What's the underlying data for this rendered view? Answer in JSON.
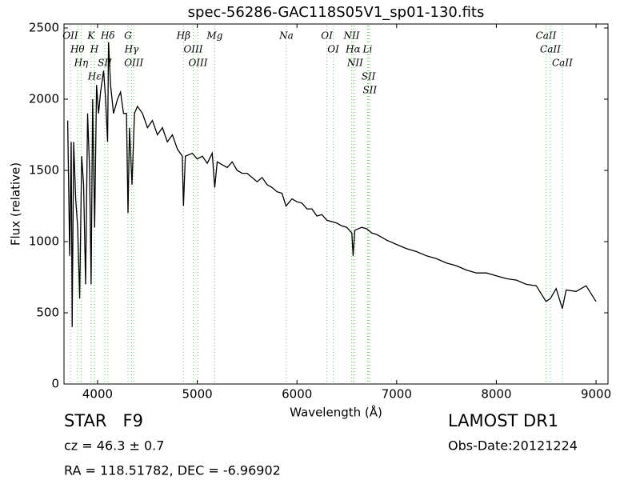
{
  "chart_data": {
    "type": "line",
    "title": "spec-56286-GAC118S05V1_sp01-130.fits",
    "x_label": "Wavelength (Å)",
    "y_label": "Flux (relative)",
    "xlim": [
      3663,
      9120
    ],
    "ylim": [
      0,
      2528
    ],
    "xticks": [
      4000,
      5000,
      6000,
      7000,
      8000,
      9000
    ],
    "yticks": [
      0,
      500,
      1000,
      1500,
      2000,
      2500
    ],
    "color": "#000000",
    "line_color": "#66cc66",
    "x": [
      3700,
      3720,
      3735,
      3745,
      3760,
      3780,
      3800,
      3820,
      3840,
      3860,
      3880,
      3900,
      3920,
      3935,
      3950,
      3970,
      3990,
      4010,
      4030,
      4060,
      4080,
      4100,
      4110,
      4130,
      4160,
      4200,
      4230,
      4260,
      4290,
      4305,
      4320,
      4345,
      4370,
      4400,
      4450,
      4500,
      4550,
      4600,
      4650,
      4700,
      4750,
      4800,
      4850,
      4861,
      4880,
      4950,
      5000,
      5050,
      5100,
      5150,
      5175,
      5200,
      5250,
      5300,
      5350,
      5400,
      5450,
      5500,
      5550,
      5600,
      5650,
      5700,
      5750,
      5800,
      5850,
      5890,
      5950,
      6000,
      6050,
      6100,
      6150,
      6200,
      6250,
      6300,
      6350,
      6400,
      6450,
      6500,
      6550,
      6563,
      6580,
      6650,
      6700,
      6750,
      6800,
      6900,
      7000,
      7100,
      7200,
      7300,
      7400,
      7500,
      7600,
      7700,
      7800,
      7900,
      8000,
      8100,
      8200,
      8300,
      8400,
      8498,
      8542,
      8600,
      8662,
      8700,
      8800,
      8900,
      9000
    ],
    "values": [
      1850,
      900,
      1700,
      400,
      1700,
      1300,
      1100,
      600,
      1600,
      1400,
      700,
      1900,
      1500,
      700,
      2000,
      1100,
      2100,
      1900,
      2050,
      2200,
      2000,
      1700,
      2400,
      2100,
      1900,
      2000,
      2050,
      1900,
      1900,
      1200,
      1800,
      1400,
      1900,
      1950,
      1900,
      1800,
      1850,
      1750,
      1800,
      1700,
      1750,
      1650,
      1600,
      1250,
      1600,
      1620,
      1580,
      1600,
      1550,
      1620,
      1380,
      1560,
      1540,
      1520,
      1560,
      1500,
      1480,
      1480,
      1450,
      1420,
      1450,
      1400,
      1380,
      1350,
      1340,
      1250,
      1300,
      1280,
      1270,
      1230,
      1230,
      1180,
      1190,
      1150,
      1140,
      1130,
      1110,
      1100,
      1060,
      900,
      1080,
      1100,
      1090,
      1060,
      1050,
      1010,
      980,
      950,
      930,
      900,
      880,
      850,
      830,
      800,
      780,
      780,
      760,
      740,
      730,
      700,
      690,
      580,
      600,
      670,
      530,
      660,
      650,
      690,
      580
    ],
    "lines": [
      {
        "label": "OII",
        "x": 3727
      },
      {
        "label": "Hθ",
        "x": 3798
      },
      {
        "label": "Hη",
        "x": 3835
      },
      {
        "label": "K",
        "x": 3934
      },
      {
        "label": "H",
        "x": 3968
      },
      {
        "label": "Hε",
        "x": 3970
      },
      {
        "label": "SII",
        "x": 4072
      },
      {
        "label": "Hδ",
        "x": 4102
      },
      {
        "label": "G",
        "x": 4304
      },
      {
        "label": "Hγ",
        "x": 4341
      },
      {
        "label": "OIII",
        "x": 4363
      },
      {
        "label": "Hβ",
        "x": 4861
      },
      {
        "label": "OIII",
        "x": 4959
      },
      {
        "label": "OIII",
        "x": 5007
      },
      {
        "label": "Mg",
        "x": 5175
      },
      {
        "label": "Na",
        "x": 5894
      },
      {
        "label": "OI",
        "x": 6300
      },
      {
        "label": "OI",
        "x": 6364
      },
      {
        "label": "NII",
        "x": 6548
      },
      {
        "label": "Hα",
        "x": 6563
      },
      {
        "label": "NII",
        "x": 6583
      },
      {
        "label": "Li",
        "x": 6708
      },
      {
        "label": "SII",
        "x": 6717
      },
      {
        "label": "SII",
        "x": 6731
      },
      {
        "label": "CaII",
        "x": 8498
      },
      {
        "label": "CaII",
        "x": 8542
      },
      {
        "label": "CaII",
        "x": 8662
      }
    ]
  },
  "footer": {
    "class": "STAR   F9",
    "redshift": "cz = 46.3 ± 0.7",
    "coords": "RA = 118.51782, DEC = -6.96902",
    "survey": "LAMOST DR1",
    "date": "Obs-Date:20121224"
  }
}
